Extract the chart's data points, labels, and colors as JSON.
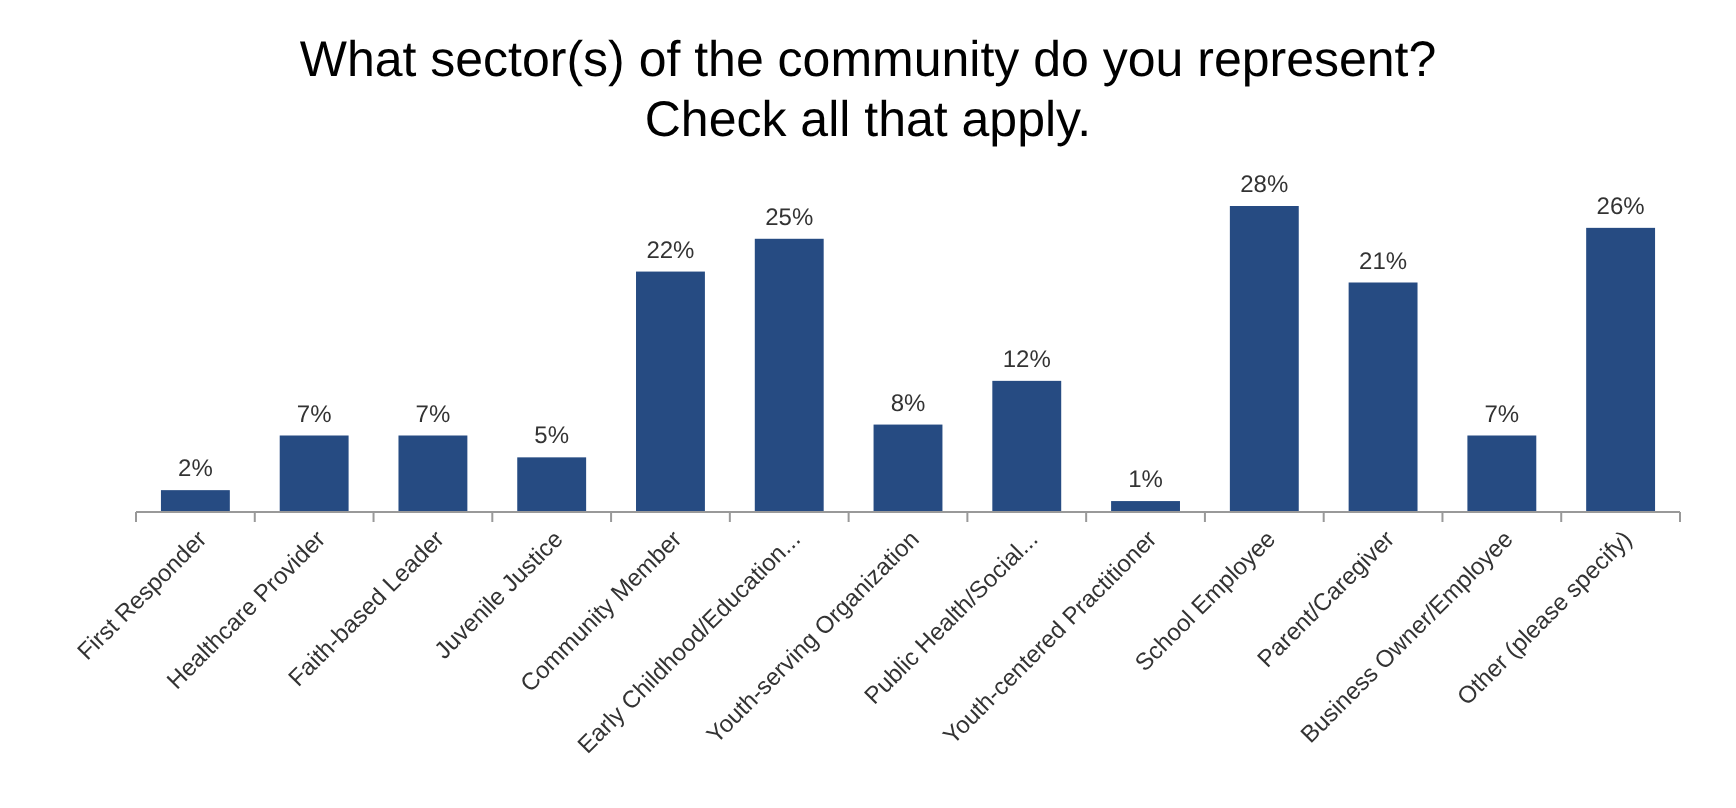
{
  "chart_data": {
    "type": "bar",
    "title": "What sector(s) of the community do you represent? Check all that apply.",
    "categories": [
      "First Responder",
      "Healthcare Provider",
      "Faith-based Leader",
      "Juvenile Justice",
      "Community Member",
      "Early Childhood/Education...",
      "Youth-serving Organization",
      "Public Health/Social...",
      "Youth-centered Practitioner",
      "School Employee",
      "Parent/Caregiver",
      "Business Owner/Employee",
      "Other (please specify)"
    ],
    "values": [
      2,
      7,
      7,
      5,
      22,
      25,
      8,
      12,
      1,
      28,
      21,
      7,
      26
    ],
    "value_labels": [
      "2%",
      "7%",
      "7%",
      "5%",
      "22%",
      "25%",
      "8%",
      "12%",
      "1%",
      "28%",
      "21%",
      "7%",
      "26%"
    ],
    "color": "#264b82"
  }
}
